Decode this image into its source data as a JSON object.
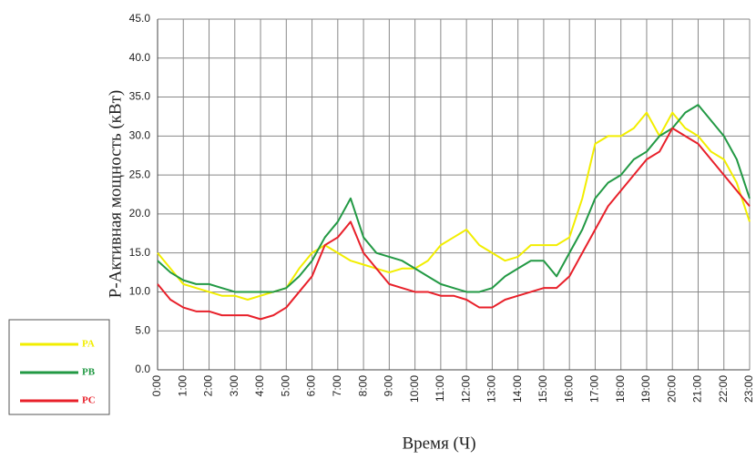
{
  "chart_data": {
    "type": "line",
    "y_label": "P-Активная мощность (кВт)",
    "x_label": "Время (Ч)",
    "x": [
      0,
      0.5,
      1,
      1.5,
      2,
      2.5,
      3,
      3.5,
      4,
      4.5,
      5,
      5.5,
      6,
      6.5,
      7,
      7.5,
      8,
      8.5,
      9,
      9.5,
      10,
      10.5,
      11,
      11.5,
      12,
      12.5,
      13,
      13.5,
      14,
      14.5,
      15,
      15.5,
      16,
      16.5,
      17,
      17.5,
      18,
      18.5,
      19,
      19.5,
      20,
      20.5,
      21,
      21.5,
      22,
      22.5,
      23
    ],
    "series": [
      {
        "name": "PA",
        "color": "#f2ee00",
        "values": [
          15,
          13,
          11,
          10.5,
          10,
          9.5,
          9.5,
          9,
          9.5,
          10,
          10.5,
          13,
          15,
          16,
          15,
          14,
          13.5,
          13,
          12.5,
          13,
          13,
          14,
          16,
          17,
          18,
          16,
          15,
          14,
          14.5,
          16,
          16,
          16,
          17,
          22,
          29,
          30,
          30,
          31,
          33,
          30,
          33,
          31,
          30,
          28,
          27,
          24,
          19
        ]
      },
      {
        "name": "PB",
        "color": "#229944",
        "values": [
          14,
          12.5,
          11.5,
          11,
          11,
          10.5,
          10,
          10,
          10,
          10,
          10.5,
          12,
          14,
          17,
          19,
          22,
          17,
          15,
          14.5,
          14,
          13,
          12,
          11,
          10.5,
          10,
          10,
          10.5,
          12,
          13,
          14,
          14,
          12,
          15,
          18,
          22,
          24,
          25,
          27,
          28,
          30,
          31,
          33,
          34,
          32,
          30,
          27,
          22
        ]
      },
      {
        "name": "PC",
        "color": "#e8202a",
        "values": [
          11,
          9,
          8,
          7.5,
          7.5,
          7,
          7,
          7,
          6.5,
          7,
          8,
          10,
          12,
          16,
          17,
          19,
          15,
          13,
          11,
          10.5,
          10,
          10,
          9.5,
          9.5,
          9,
          8,
          8,
          9,
          9.5,
          10,
          10.5,
          10.5,
          12,
          15,
          18,
          21,
          23,
          25,
          27,
          28,
          31,
          30,
          29,
          27,
          25,
          23,
          21
        ]
      }
    ],
    "xlim": [
      0,
      23
    ],
    "xticks": [
      {
        "value": 0,
        "label": "0:00"
      },
      {
        "value": 1,
        "label": "1:00"
      },
      {
        "value": 2,
        "label": "2:00"
      },
      {
        "value": 3,
        "label": "3:00"
      },
      {
        "value": 4,
        "label": "4:00"
      },
      {
        "value": 5,
        "label": "5:00"
      },
      {
        "value": 6,
        "label": "6:00"
      },
      {
        "value": 7,
        "label": "7:00"
      },
      {
        "value": 8,
        "label": "8:00"
      },
      {
        "value": 9,
        "label": "9:00"
      },
      {
        "value": 10,
        "label": "10:00"
      },
      {
        "value": 11,
        "label": "11:00"
      },
      {
        "value": 12,
        "label": "12:00"
      },
      {
        "value": 13,
        "label": "13:00"
      },
      {
        "value": 14,
        "label": "14:00"
      },
      {
        "value": 15,
        "label": "15:00"
      },
      {
        "value": 16,
        "label": "16:00"
      },
      {
        "value": 17,
        "label": "17:00"
      },
      {
        "value": 18,
        "label": "18:00"
      },
      {
        "value": 19,
        "label": "19:00"
      },
      {
        "value": 20,
        "label": "20:00"
      },
      {
        "value": 21,
        "label": "21:00"
      },
      {
        "value": 22,
        "label": "22:00"
      },
      {
        "value": 23,
        "label": "23:00"
      }
    ],
    "ylim": [
      0,
      45
    ],
    "yticks": [
      {
        "value": 0,
        "label": "0.0"
      },
      {
        "value": 5,
        "label": "5.0"
      },
      {
        "value": 10,
        "label": "10.0"
      },
      {
        "value": 15,
        "label": "15.0"
      },
      {
        "value": 20,
        "label": "20.0"
      },
      {
        "value": 25,
        "label": "25.0"
      },
      {
        "value": 30,
        "label": "30.0"
      },
      {
        "value": 35,
        "label": "35.0"
      },
      {
        "value": 40,
        "label": "40.0"
      },
      {
        "value": 45,
        "label": "45.0"
      }
    ],
    "grid": true
  }
}
